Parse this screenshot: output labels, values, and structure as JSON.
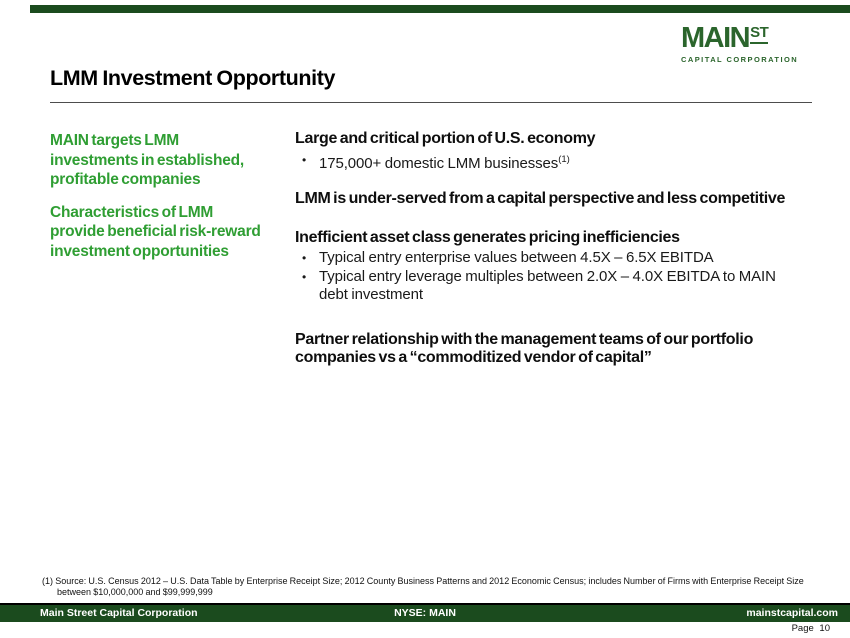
{
  "slide": {
    "title": "LMM Investment Opportunity",
    "page_label": "Page 10"
  },
  "logo": {
    "word": "MAIN",
    "suffix": "ST",
    "tagline": "CAPITAL CORPORATION"
  },
  "sidebar": {
    "paragraphs": [
      "MAIN targets LMM investments in established, profitable companies",
      "Characteristics of LMM provide beneficial risk-reward investment opportunities"
    ]
  },
  "content": {
    "sections": [
      {
        "heading": "Large and critical portion of U.S. economy",
        "bullets": [
          {
            "text": "175,000+ domestic LMM businesses",
            "sup": "(1)"
          }
        ]
      },
      {
        "heading": "LMM is under-served from a capital perspective and less competitive",
        "bullets": []
      },
      {
        "heading": "Inefficient asset class generates pricing inefficiencies",
        "bullets": [
          {
            "text": "Typical entry enterprise values between 4.5X – 6.5X EBITDA"
          },
          {
            "text": "Typical entry leverage multiples between 2.0X – 4.0X EBITDA to MAIN debt investment"
          }
        ]
      },
      {
        "heading": "Partner relationship with the management teams of our portfolio companies vs a “commoditized vendor of capital”",
        "bullets": []
      }
    ]
  },
  "footnote": "(1) Source: U.S. Census 2012 – U.S. Data Table by Enterprise Receipt Size; 2012 County Business Patterns and 2012 Economic Census; includes Number of Firms with Enterprise Receipt Size between $10,000,000 and $99,999,999",
  "footer": {
    "left": "Main Street Capital Corporation",
    "center": "NYSE: MAIN",
    "right": "mainstcapital.com"
  },
  "colors": {
    "bar_green": "#1B4B1E",
    "logo_green": "#2B652C",
    "text_green": "#2F9E33"
  }
}
